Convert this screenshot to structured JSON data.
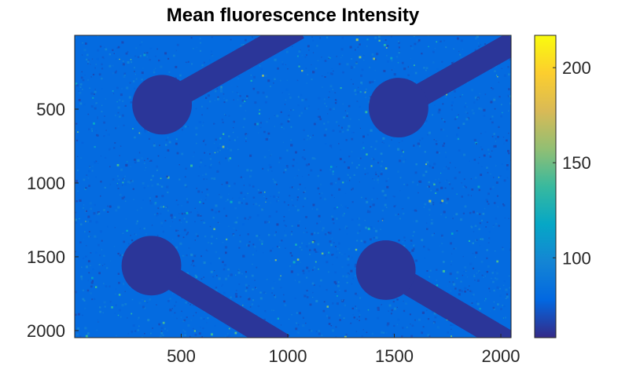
{
  "chart_data": {
    "type": "heatmap",
    "title": "Mean fluorescence Intensity",
    "xlabel": "",
    "ylabel": "",
    "xlim": [
      0,
      2048
    ],
    "ylim": [
      0,
      2048
    ],
    "y_reversed": true,
    "x_ticks": [
      500,
      1000,
      1500,
      2000
    ],
    "y_ticks": [
      500,
      1000,
      1500,
      2000
    ],
    "colormap": "parula",
    "colorbar": {
      "range": [
        58,
        217
      ],
      "ticks": [
        100,
        150,
        200
      ],
      "stops": [
        "#352a87",
        "#0268e1",
        "#1485d4",
        "#06a7c6",
        "#38b99e",
        "#92bf73",
        "#d9ba56",
        "#fcce2e",
        "#f9fb0e"
      ]
    },
    "background_level": 80,
    "dark_feature_level": 62,
    "dark_features": [
      {
        "shape": "disc",
        "center": [
          410,
          470
        ],
        "radius": 140
      },
      {
        "shape": "disc",
        "center": [
          1520,
          490
        ],
        "radius": 140
      },
      {
        "shape": "disc",
        "center": [
          360,
          1560
        ],
        "radius": 140
      },
      {
        "shape": "disc",
        "center": [
          1460,
          1590
        ],
        "radius": 140
      },
      {
        "shape": "channel",
        "from": [
          410,
          470
        ],
        "to": [
          1050,
          -50
        ],
        "width": 110
      },
      {
        "shape": "channel",
        "from": [
          1520,
          490
        ],
        "to": [
          2060,
          50
        ],
        "width": 110
      },
      {
        "shape": "channel",
        "from": [
          360,
          1560
        ],
        "to": [
          980,
          2100
        ],
        "width": 110
      },
      {
        "shape": "channel",
        "from": [
          1460,
          1590
        ],
        "to": [
          2060,
          2100
        ],
        "width": 110
      }
    ]
  }
}
